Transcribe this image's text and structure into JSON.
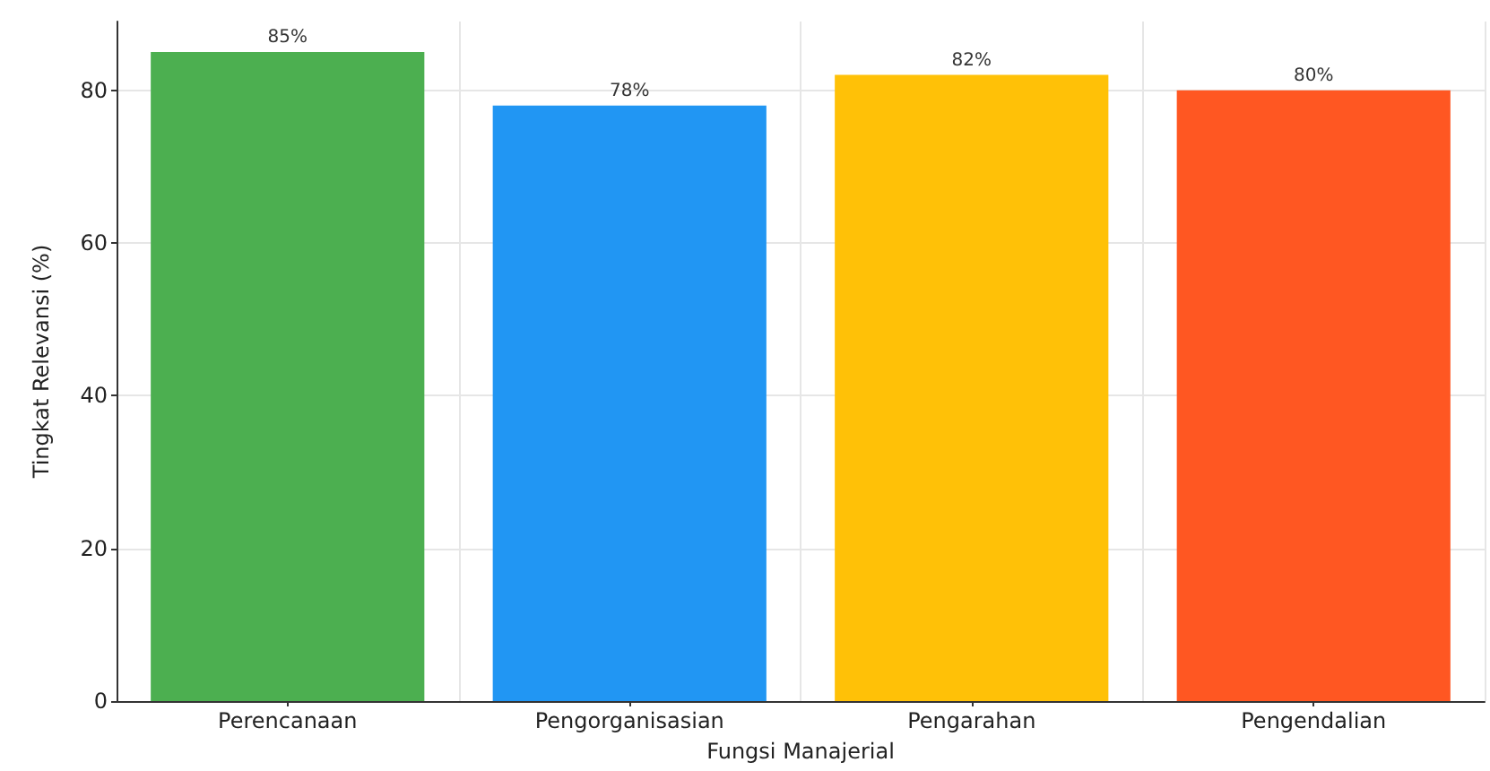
{
  "chart_data": {
    "type": "bar",
    "xlabel": "Fungsi Manajerial",
    "ylabel": "Tingkat Relevansi (%)",
    "categories": [
      "Perencanaan",
      "Pengorganisasian",
      "Pengarahan",
      "Pengendalian"
    ],
    "values": [
      85,
      78,
      82,
      80
    ],
    "colors": [
      "#4caf50",
      "#2196f3",
      "#ffc107",
      "#ff5722"
    ],
    "value_labels": [
      "85%",
      "78%",
      "82%",
      "80%"
    ],
    "ylim": [
      0,
      89
    ],
    "yticks": [
      0,
      20,
      40,
      60,
      80
    ],
    "grid": true
  }
}
